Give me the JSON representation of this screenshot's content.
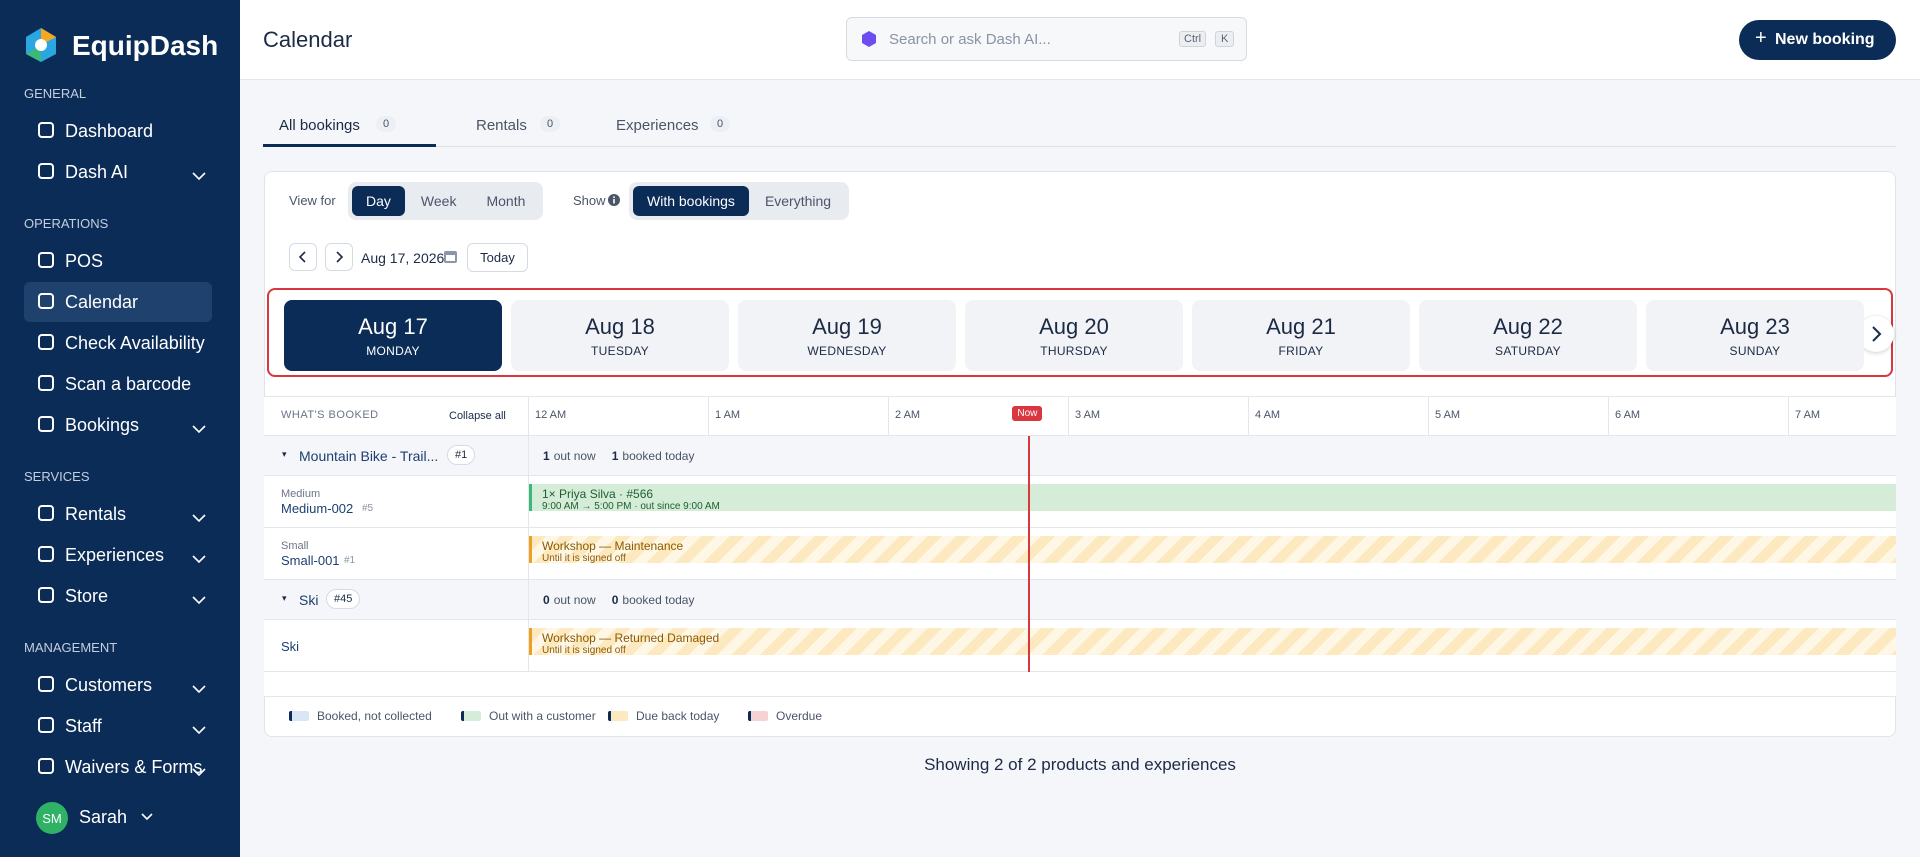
{
  "sidebar": {
    "brand": "EquipDash",
    "sections": [
      {
        "heading": "GENERAL",
        "items": [
          {
            "label": "Dashboard"
          },
          {
            "label": "Dash AI",
            "expandable": true
          }
        ]
      },
      {
        "heading": "OPERATIONS",
        "items": [
          {
            "label": "POS"
          },
          {
            "label": "Calendar",
            "active": true
          },
          {
            "label": "Check Availability"
          },
          {
            "label": "Scan a barcode"
          },
          {
            "label": "Bookings",
            "expandable": true
          }
        ]
      },
      {
        "heading": "SERVICES",
        "items": [
          {
            "label": "Rentals",
            "expandable": true
          },
          {
            "label": "Experiences",
            "expandable": true
          },
          {
            "label": "Store",
            "expandable": true
          }
        ]
      },
      {
        "heading": "MANAGEMENT",
        "items": [
          {
            "label": "Customers",
            "expandable": true
          },
          {
            "label": "Staff",
            "expandable": true
          },
          {
            "label": "Waivers & Forms",
            "expandable": true
          }
        ]
      }
    ],
    "user": {
      "initials": "SM",
      "name": "Sarah"
    }
  },
  "header": {
    "title": "Calendar",
    "search_placeholder": "Search or ask Dash AI...",
    "shortcut": [
      "Ctrl",
      "K"
    ],
    "new_booking": "New booking"
  },
  "tabs": [
    {
      "label": "All bookings",
      "count": 0
    },
    {
      "label": "Rentals",
      "count": 0
    },
    {
      "label": "Experiences",
      "count": 0
    }
  ],
  "toolbar": {
    "view_label": "View for",
    "views": [
      "Day",
      "Week",
      "Month"
    ],
    "show_label": "Show",
    "show_options": [
      "With bookings",
      "Everything"
    ],
    "date": "Aug 17, 2026",
    "today": "Today"
  },
  "days": [
    {
      "date": "Aug 17",
      "weekday": "MONDAY"
    },
    {
      "date": "Aug 18",
      "weekday": "TUESDAY"
    },
    {
      "date": "Aug 19",
      "weekday": "WEDNESDAY"
    },
    {
      "date": "Aug 20",
      "weekday": "THURSDAY"
    },
    {
      "date": "Aug 21",
      "weekday": "FRIDAY"
    },
    {
      "date": "Aug 22",
      "weekday": "SATURDAY"
    },
    {
      "date": "Aug 23",
      "weekday": "SUNDAY"
    }
  ],
  "timeline": {
    "header": "WHAT'S BOOKED",
    "collapse": "Collapse all",
    "hours": [
      "12 AM",
      "1 AM",
      "2 AM",
      "3 AM",
      "4 AM",
      "5 AM",
      "6 AM",
      "7 AM"
    ],
    "now": "Now"
  },
  "groups": [
    {
      "name": "Mountain Bike - Trail...",
      "tag": "#1",
      "out_now": 1,
      "out_label": "out now",
      "booked_today": 1,
      "booked_label": "booked today",
      "rows": [
        {
          "variant": "Medium",
          "name": "Medium-002",
          "tag": "#5",
          "booking": {
            "title": "1× Priya Silva · #566",
            "detail": "9:00 AM → 5:00 PM · out since 9:00 AM",
            "status": "out"
          }
        },
        {
          "variant": "Small",
          "name": "Small-001",
          "tag": "#1",
          "booking": {
            "title": "Workshop — Maintenance",
            "detail": "Until it is signed off",
            "status": "due"
          }
        }
      ]
    },
    {
      "name": "Ski",
      "tag": "#45",
      "out_now": 0,
      "out_label": "out now",
      "booked_today": 0,
      "booked_label": "booked today",
      "rows": [
        {
          "name": "Ski",
          "booking": {
            "title": "Workshop — Returned Damaged",
            "detail": "Until it is signed off",
            "status": "due"
          }
        }
      ]
    }
  ],
  "legend": [
    {
      "label": "Booked, not collected",
      "color": "#dbe6f5"
    },
    {
      "label": "Out with a customer",
      "color": "#d4ecd8"
    },
    {
      "label": "Due back today",
      "color": "#fde9bf"
    },
    {
      "label": "Overdue",
      "color": "#f6d3d3"
    }
  ],
  "footer": "Showing 2 of 2 products and experiences"
}
